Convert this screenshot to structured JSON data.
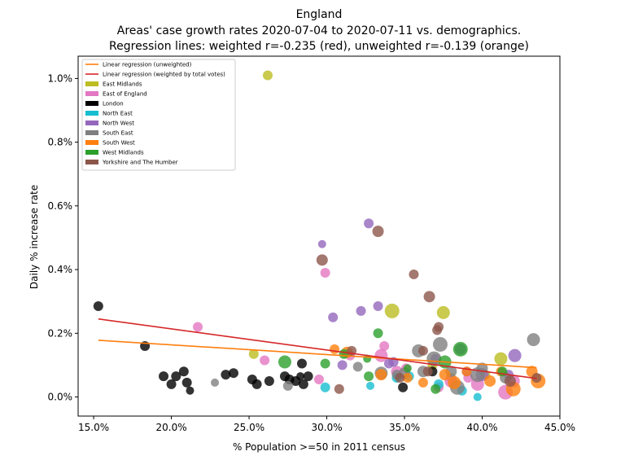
{
  "chart_data": {
    "type": "scatter",
    "title": "England",
    "subtitle_lines": [
      "Areas' case growth rates 2020-07-04 to 2020-07-11 vs. demographics.",
      "Regression lines: weighted r=-0.235 (red), unweighted r=-0.139 (orange)"
    ],
    "xlabel": "% Population >=50 in 2011 census",
    "ylabel": "Daily % increase rate",
    "xlim": [
      14.0,
      45.0
    ],
    "ylim": [
      -0.06,
      1.07
    ],
    "x_ticks": [
      15,
      20,
      25,
      30,
      35,
      40,
      45
    ],
    "x_tick_labels": [
      "15.0%",
      "20.0%",
      "25.0%",
      "30.0%",
      "35.0%",
      "40.0%",
      "45.0%"
    ],
    "y_ticks": [
      0.0,
      0.2,
      0.4,
      0.6,
      0.8,
      1.0
    ],
    "y_tick_labels": [
      "0.0%",
      "0.2%",
      "0.4%",
      "0.6%",
      "0.8%",
      "1.0%"
    ],
    "grid": false,
    "legend_position": "top-left",
    "lines": [
      {
        "name": "Linear regression (unweighted)",
        "color": "#ff7f0e",
        "x": [
          15.3,
          43.5
        ],
        "y": [
          0.178,
          0.092
        ]
      },
      {
        "name": "Linear regression (weighted by total votes)",
        "color": "#d62728",
        "x": [
          15.3,
          43.5
        ],
        "y": [
          0.245,
          0.058
        ]
      }
    ],
    "series": [
      {
        "name": "East Midlands",
        "color": "#bcbd22",
        "points": [
          [
            26.2,
            1.01,
            6
          ],
          [
            34.2,
            0.27,
            9
          ],
          [
            37.5,
            0.265,
            8
          ],
          [
            41.2,
            0.12,
            8
          ],
          [
            25.3,
            0.135,
            6
          ],
          [
            38.0,
            0.06,
            6
          ],
          [
            36.8,
            0.1,
            6
          ],
          [
            40.2,
            0.07,
            6
          ]
        ]
      },
      {
        "name": "East of England",
        "color": "#e377c2",
        "points": [
          [
            21.7,
            0.22,
            6
          ],
          [
            26.0,
            0.115,
            6
          ],
          [
            29.5,
            0.055,
            6
          ],
          [
            29.9,
            0.39,
            6
          ],
          [
            31.5,
            0.13,
            6
          ],
          [
            33.5,
            0.13,
            8
          ],
          [
            33.7,
            0.16,
            6
          ],
          [
            34.5,
            0.08,
            7
          ],
          [
            35.1,
            0.09,
            6
          ],
          [
            37.2,
            0.03,
            6
          ],
          [
            38.0,
            0.05,
            8
          ],
          [
            39.1,
            0.06,
            6
          ],
          [
            39.7,
            0.04,
            8
          ],
          [
            41.5,
            0.015,
            9
          ],
          [
            42.0,
            0.05,
            8
          ]
        ]
      },
      {
        "name": "London",
        "color": "#000000",
        "points": [
          [
            15.3,
            0.285,
            6
          ],
          [
            18.3,
            0.16,
            6
          ],
          [
            19.5,
            0.065,
            6
          ],
          [
            20.0,
            0.04,
            6
          ],
          [
            20.3,
            0.065,
            6
          ],
          [
            20.8,
            0.08,
            6
          ],
          [
            21.0,
            0.045,
            6
          ],
          [
            21.2,
            0.02,
            5
          ],
          [
            23.5,
            0.07,
            6
          ],
          [
            24.0,
            0.075,
            6
          ],
          [
            25.2,
            0.055,
            6
          ],
          [
            25.5,
            0.04,
            6
          ],
          [
            26.3,
            0.05,
            6
          ],
          [
            27.3,
            0.065,
            6
          ],
          [
            27.6,
            0.055,
            6
          ],
          [
            28.0,
            0.05,
            6
          ],
          [
            28.4,
            0.105,
            6
          ],
          [
            28.5,
            0.04,
            6
          ],
          [
            28.8,
            0.065,
            6
          ],
          [
            28.3,
            0.065,
            5
          ],
          [
            34.9,
            0.03,
            6
          ],
          [
            36.8,
            0.08,
            6
          ]
        ]
      },
      {
        "name": "North East",
        "color": "#17becf",
        "points": [
          [
            29.9,
            0.03,
            6
          ],
          [
            32.8,
            0.035,
            5
          ],
          [
            35.3,
            0.065,
            6
          ],
          [
            37.2,
            0.04,
            6
          ],
          [
            38.7,
            0.02,
            6
          ],
          [
            39.7,
            0.0,
            5
          ],
          [
            34.5,
            0.06,
            6
          ]
        ]
      },
      {
        "name": "North West",
        "color": "#9467bd",
        "points": [
          [
            29.7,
            0.48,
            5
          ],
          [
            30.4,
            0.25,
            6
          ],
          [
            31.0,
            0.1,
            6
          ],
          [
            32.2,
            0.27,
            6
          ],
          [
            32.7,
            0.545,
            6
          ],
          [
            33.3,
            0.285,
            6
          ],
          [
            34.0,
            0.105,
            6
          ],
          [
            34.3,
            0.11,
            6
          ],
          [
            37.0,
            0.12,
            6
          ],
          [
            38.6,
            0.15,
            7
          ],
          [
            39.0,
            0.08,
            6
          ],
          [
            40.0,
            0.07,
            8
          ],
          [
            42.1,
            0.13,
            8
          ],
          [
            41.7,
            0.07,
            6
          ]
        ]
      },
      {
        "name": "South East",
        "color": "#7f7f7f",
        "points": [
          [
            22.8,
            0.045,
            5
          ],
          [
            27.5,
            0.035,
            6
          ],
          [
            32.0,
            0.095,
            6
          ],
          [
            33.5,
            0.075,
            8
          ],
          [
            35.0,
            0.075,
            7
          ],
          [
            35.9,
            0.145,
            8
          ],
          [
            36.9,
            0.12,
            9
          ],
          [
            37.3,
            0.165,
            9
          ],
          [
            38.0,
            0.08,
            7
          ],
          [
            38.4,
            0.03,
            9
          ],
          [
            39.7,
            0.07,
            9
          ],
          [
            40.0,
            0.09,
            7
          ],
          [
            41.5,
            0.06,
            7
          ],
          [
            43.3,
            0.18,
            8
          ],
          [
            36.2,
            0.08,
            7
          ],
          [
            34.5,
            0.07,
            6
          ]
        ]
      },
      {
        "name": "South West",
        "color": "#ff7f0e",
        "points": [
          [
            30.5,
            0.15,
            6
          ],
          [
            31.3,
            0.14,
            7
          ],
          [
            33.5,
            0.07,
            7
          ],
          [
            35.2,
            0.06,
            6
          ],
          [
            36.2,
            0.045,
            6
          ],
          [
            37.6,
            0.07,
            7
          ],
          [
            38.2,
            0.045,
            8
          ],
          [
            39.0,
            0.08,
            6
          ],
          [
            40.5,
            0.05,
            7
          ],
          [
            41.2,
            0.08,
            6
          ],
          [
            42.0,
            0.025,
            9
          ],
          [
            43.2,
            0.08,
            7
          ],
          [
            43.6,
            0.05,
            9
          ]
        ]
      },
      {
        "name": "West Midlands",
        "color": "#2ca02c",
        "points": [
          [
            27.3,
            0.11,
            8
          ],
          [
            29.9,
            0.105,
            6
          ],
          [
            31.1,
            0.135,
            6
          ],
          [
            32.7,
            0.065,
            6
          ],
          [
            32.6,
            0.12,
            5
          ],
          [
            33.3,
            0.2,
            6
          ],
          [
            37.0,
            0.025,
            6
          ],
          [
            37.6,
            0.11,
            8
          ],
          [
            38.6,
            0.15,
            9
          ],
          [
            41.3,
            0.08,
            6
          ],
          [
            35.2,
            0.09,
            5
          ]
        ]
      },
      {
        "name": "Yorkshire and The Humber",
        "color": "#8c564b",
        "points": [
          [
            29.7,
            0.43,
            7
          ],
          [
            30.8,
            0.025,
            6
          ],
          [
            31.6,
            0.145,
            6
          ],
          [
            33.3,
            0.52,
            7
          ],
          [
            34.7,
            0.06,
            6
          ],
          [
            35.6,
            0.385,
            6
          ],
          [
            36.2,
            0.145,
            6
          ],
          [
            36.6,
            0.315,
            7
          ],
          [
            37.1,
            0.21,
            6
          ],
          [
            37.2,
            0.22,
            6
          ],
          [
            36.5,
            0.08,
            6
          ],
          [
            41.8,
            0.05,
            7
          ],
          [
            43.5,
            0.06,
            6
          ]
        ]
      }
    ]
  }
}
